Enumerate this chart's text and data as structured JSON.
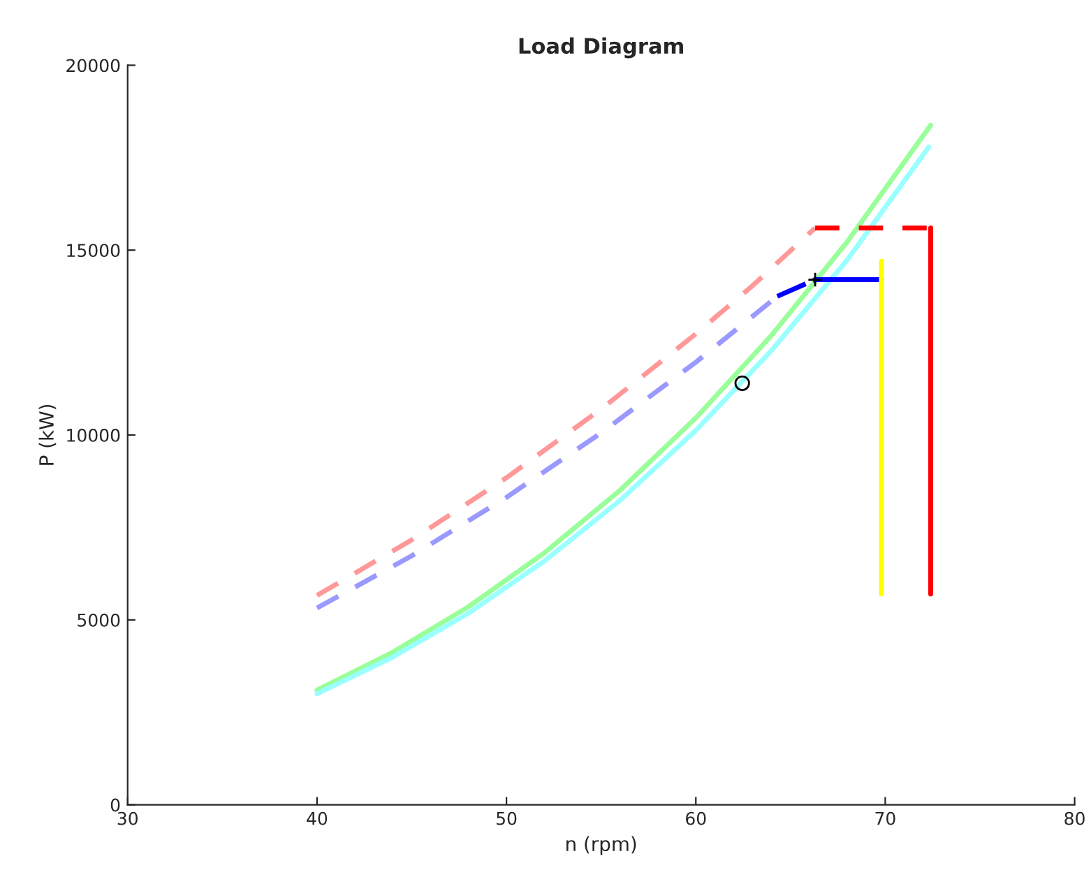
{
  "chart_data": {
    "type": "line",
    "title": "Load Diagram",
    "xlabel": "n (rpm)",
    "ylabel": "P (kW)",
    "xlim": [
      30,
      80
    ],
    "ylim": [
      0,
      20000
    ],
    "xticks": [
      30,
      40,
      50,
      60,
      70,
      80
    ],
    "yticks": [
      0,
      5000,
      10000,
      15000,
      20000
    ],
    "grid": false,
    "legend": false,
    "series": [
      {
        "color": "#99ff99",
        "line_style": "solid",
        "marker": "none",
        "x": [
          40,
          44,
          48,
          52,
          56,
          60,
          64,
          68,
          72.4
        ],
        "values": [
          3100,
          4126,
          5357,
          6811,
          8506,
          10463,
          12698,
          15230,
          18380
        ]
      },
      {
        "color": "#99ffff",
        "line_style": "solid",
        "marker": "none",
        "x": [
          40,
          44,
          48,
          52,
          56,
          60,
          64,
          68,
          72.3
        ],
        "values": [
          3000,
          3993,
          5184,
          6591,
          8232,
          10125,
          12288,
          14739,
          17790
        ]
      },
      {
        "color": "#ff9999",
        "line_style": "dashed",
        "marker": "none",
        "x": [
          40,
          45,
          50,
          55,
          60,
          63,
          66.3
        ],
        "values": [
          5660,
          7163,
          8844,
          10701,
          12735,
          14040,
          15600
        ]
      },
      {
        "color": "#ff0000",
        "line_style": "dashed",
        "marker": "none",
        "x": [
          66.3,
          72.4
        ],
        "values": [
          15600,
          15600
        ]
      },
      {
        "color": "#ff0000",
        "line_style": "solid",
        "marker": "none",
        "x": [
          72.4,
          72.4
        ],
        "values": [
          15600,
          5700
        ]
      },
      {
        "color": "#9999ff",
        "line_style": "dashed",
        "marker": "none",
        "x": [
          40,
          45,
          50,
          55,
          60,
          64.3
        ],
        "values": [
          5320,
          6733,
          8313,
          10058,
          11970,
          13750
        ]
      },
      {
        "color": "#0000ff",
        "line_style": "dashdot",
        "marker": "none",
        "x": [
          64.3,
          66.3
        ],
        "values": [
          13750,
          14200
        ]
      },
      {
        "color": "#0000ff",
        "line_style": "solid",
        "marker": "none",
        "x": [
          66.3,
          69.8
        ],
        "values": [
          14200,
          14200
        ]
      },
      {
        "color": "#ffff00",
        "line_style": "solid",
        "marker": "none",
        "x": [
          69.8,
          69.8
        ],
        "values": [
          14700,
          5700
        ]
      },
      {
        "color": "#000000",
        "line_style": "none",
        "marker": "cross",
        "x": [
          66.3
        ],
        "values": [
          14200
        ]
      },
      {
        "color": "#000000",
        "line_style": "none",
        "marker": "circle",
        "x": [
          62.45
        ],
        "values": [
          11400
        ]
      }
    ]
  }
}
